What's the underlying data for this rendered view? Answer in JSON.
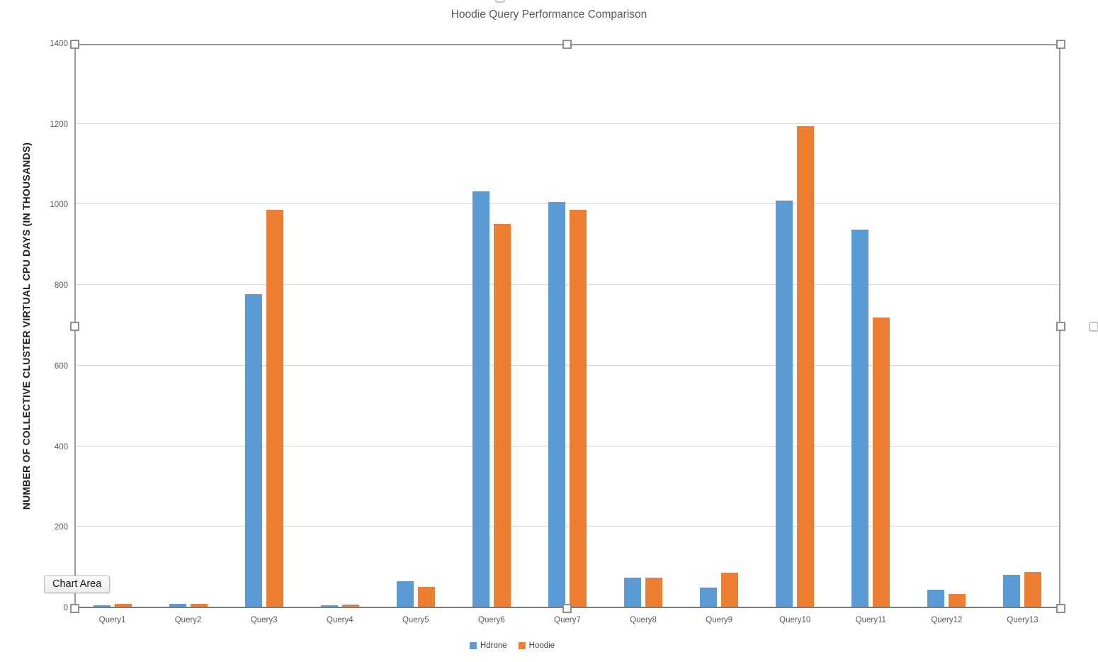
{
  "tooltip": {
    "label": "Chart Area"
  },
  "chart_data": {
    "type": "bar",
    "title": "Hoodie Query Performance Comparison",
    "ylabel": "NUMBER OF COLLECTIVE CLUSTER VIRTUAL CPU DAYS (IN THOUSANDS)",
    "xlabel": "",
    "categories": [
      "Query1",
      "Query2",
      "Query3",
      "Query4",
      "Query5",
      "Query6",
      "Query7",
      "Query8",
      "Query9",
      "Query10",
      "Query11",
      "Query12",
      "Query13"
    ],
    "series": [
      {
        "name": "Hdrone",
        "color": "#5B9BD5",
        "values": [
          4,
          7,
          775,
          4,
          63,
          1030,
          1005,
          72,
          48,
          1008,
          935,
          42,
          80
        ]
      },
      {
        "name": "Hoodie",
        "color": "#ED7D31",
        "values": [
          7,
          7,
          985,
          5,
          50,
          950,
          985,
          73,
          85,
          1193,
          718,
          32,
          86
        ]
      }
    ],
    "ylim": [
      0,
      1400
    ],
    "ytick_interval": 200,
    "grid": true,
    "legend_position": "bottom",
    "colors": {
      "gridline": "#d9d9d9",
      "axis_line": "#7a7a7a",
      "tick_text": "#595959",
      "title_text": "#595959"
    }
  }
}
